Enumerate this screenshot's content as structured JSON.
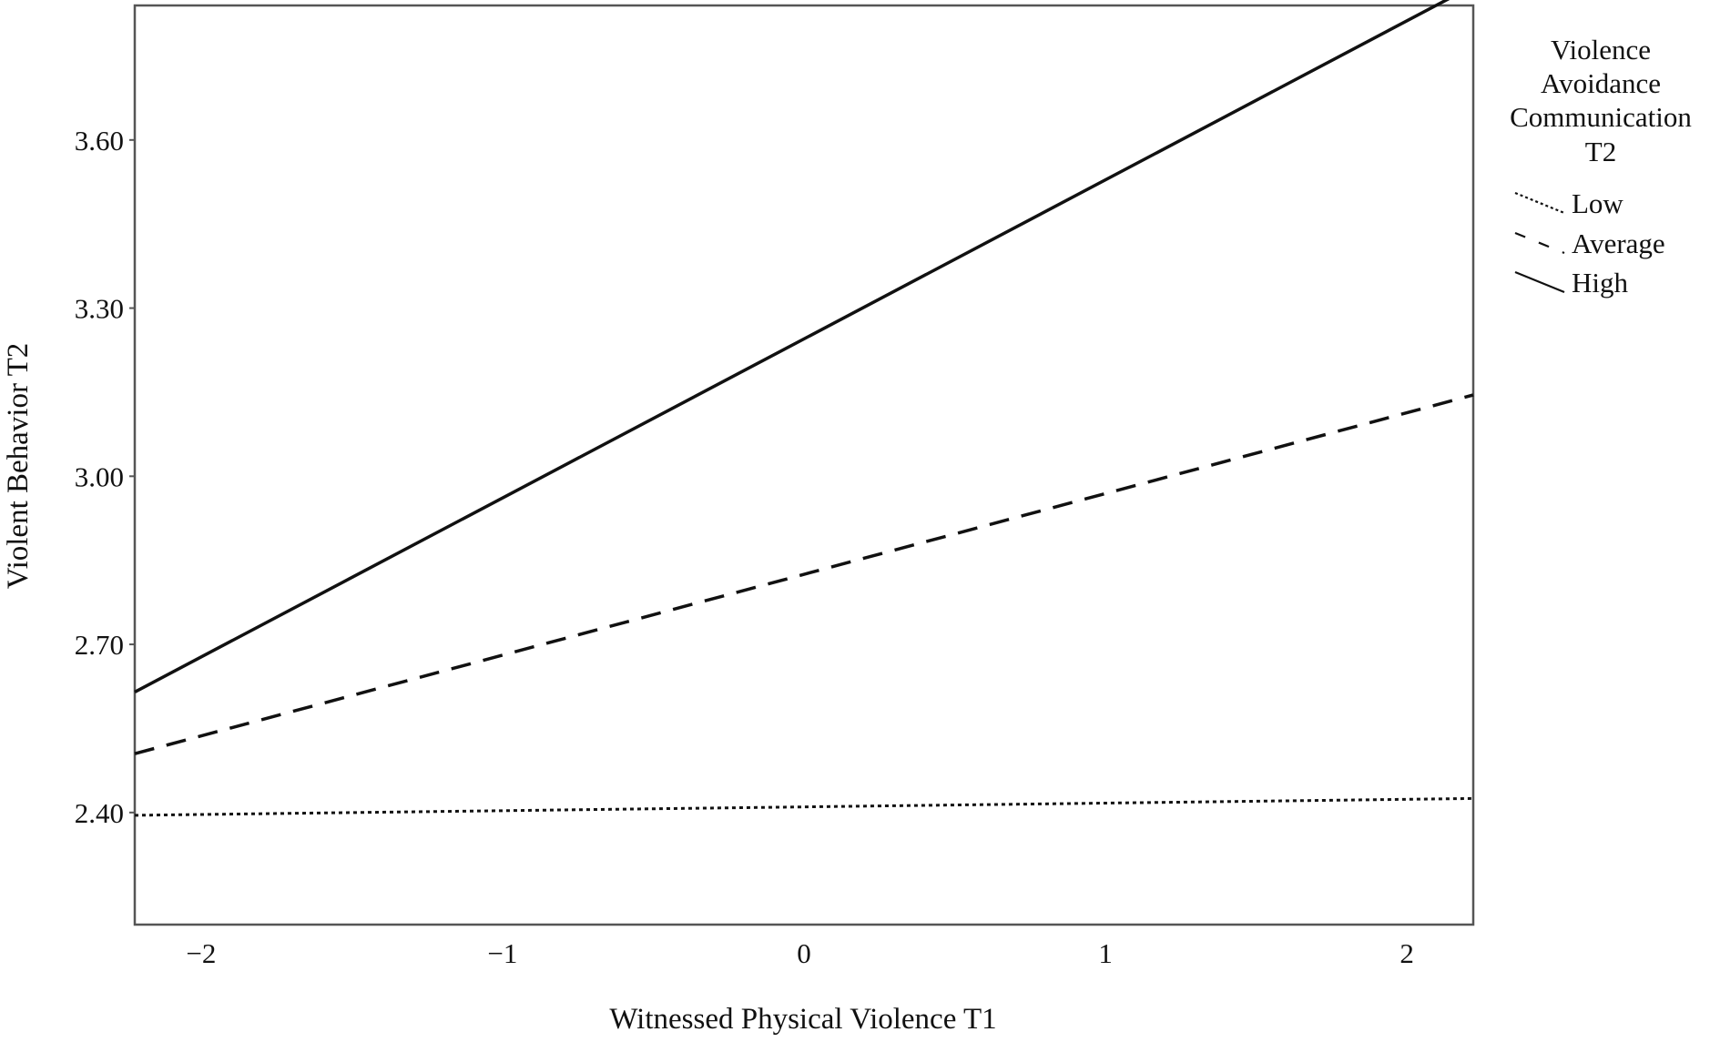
{
  "chart_data": {
    "type": "line",
    "title": "",
    "xlabel": "Witnessed Physical Violence T1",
    "ylabel": "Violent Behavior T2",
    "x_ticks": [
      "−2",
      "−1",
      "0",
      "1",
      "2"
    ],
    "x_tick_values": [
      -2,
      -1,
      0,
      1,
      2
    ],
    "y_ticks": [
      "2.40",
      "2.70",
      "3.00",
      "3.30",
      "3.60"
    ],
    "y_tick_values": [
      2.4,
      2.7,
      3.0,
      3.3,
      3.6
    ],
    "xlim": [
      -2.22,
      2.22
    ],
    "ylim": [
      2.2,
      3.84
    ],
    "grid": false,
    "legend": {
      "position": "right",
      "title_lines": [
        "Violence",
        "Avoidance",
        "Communication",
        "T2"
      ]
    },
    "series": [
      {
        "name": "Low",
        "style": "dotted",
        "color": "#111111",
        "x": [
          -2.22,
          2.22
        ],
        "y": [
          2.395,
          2.425
        ]
      },
      {
        "name": "Average",
        "style": "dashed",
        "color": "#111111",
        "x": [
          -2.22,
          2.22
        ],
        "y": [
          2.505,
          3.145
        ]
      },
      {
        "name": "High",
        "style": "solid",
        "color": "#111111",
        "x": [
          -2.22,
          2.22
        ],
        "y": [
          2.615,
          3.875
        ]
      }
    ]
  }
}
